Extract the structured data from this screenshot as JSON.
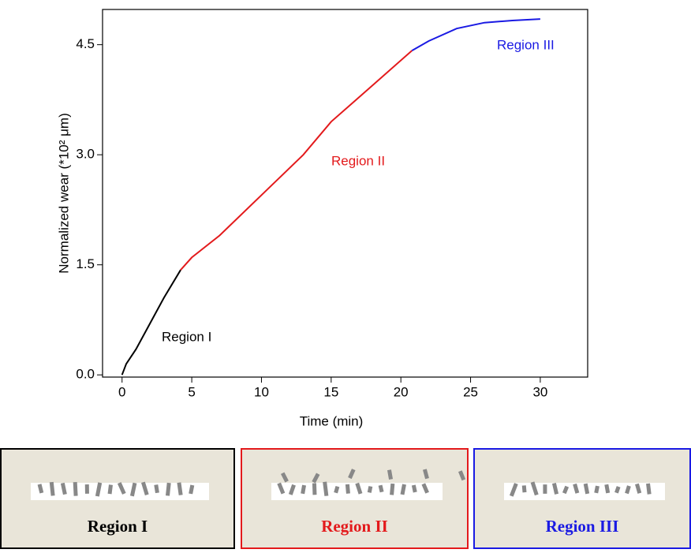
{
  "chart_data": {
    "type": "line",
    "x_label": "Time (min)",
    "y_label": "Normalized wear (*10² μm)",
    "xlim": [
      -1.4,
      33.4
    ],
    "ylim": [
      -0.03,
      4.98
    ],
    "xticks": [
      0,
      5,
      10,
      15,
      20,
      25,
      30
    ],
    "yticks": [
      {
        "value": 0,
        "label": "0.0"
      },
      1.5,
      {
        "value": 3,
        "label": "3.0"
      },
      4.5
    ],
    "series": [
      {
        "name": "Region I",
        "color": "#000000",
        "x": [
          0,
          0.3,
          1,
          2,
          3,
          4.2
        ],
        "values": [
          0,
          0.15,
          0.35,
          0.7,
          1.05,
          1.43
        ]
      },
      {
        "name": "Region II",
        "color": "#e31a1c",
        "x": [
          4.2,
          5,
          7,
          10,
          13,
          15,
          18,
          20.8
        ],
        "values": [
          1.43,
          1.6,
          1.9,
          2.45,
          3.0,
          3.45,
          3.95,
          4.42
        ]
      },
      {
        "name": "Region III",
        "color": "#1a1ae3",
        "x": [
          20.8,
          22,
          24,
          26,
          28,
          30
        ],
        "values": [
          4.42,
          4.55,
          4.72,
          4.8,
          4.83,
          4.85
        ]
      }
    ]
  },
  "panels": [
    {
      "label": "Region I"
    },
    {
      "label": "Region II"
    },
    {
      "label": "Region III"
    }
  ]
}
